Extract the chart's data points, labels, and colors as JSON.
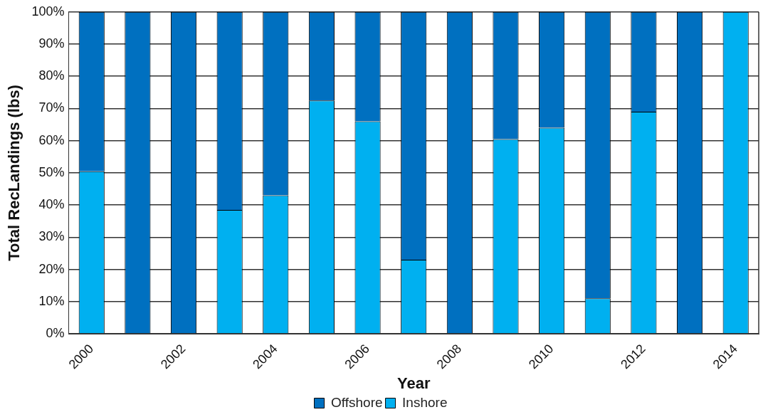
{
  "chart_data": {
    "type": "bar",
    "stacked": true,
    "xlabel": "Year",
    "ylabel": "Total RecLandings (lbs)",
    "categories": [
      "2000",
      null,
      "2002",
      null,
      "2004",
      null,
      "2006",
      null,
      "2008",
      null,
      "2010",
      null,
      "2012",
      null,
      "2014"
    ],
    "series": [
      {
        "name": "Inshore",
        "color": "#00b0f0",
        "values": [
          50.5,
          0,
          0,
          38.5,
          43,
          72.5,
          66,
          23,
          0,
          60.5,
          64,
          11,
          69,
          0,
          100
        ]
      },
      {
        "name": "Offshore",
        "color": "#0070c0",
        "values": [
          49.5,
          100,
          100,
          61.5,
          57,
          27.5,
          34,
          77,
          100,
          39.5,
          36,
          89,
          31,
          100,
          0
        ]
      }
    ],
    "ylim": [
      0,
      100
    ],
    "yticks": [
      {
        "value": 0,
        "label": "0%"
      },
      {
        "value": 10,
        "label": "10%"
      },
      {
        "value": 20,
        "label": "20%"
      },
      {
        "value": 30,
        "label": "30%"
      },
      {
        "value": 40,
        "label": "40%"
      },
      {
        "value": 50,
        "label": "50%"
      },
      {
        "value": 60,
        "label": "60%"
      },
      {
        "value": 70,
        "label": "70%"
      },
      {
        "value": 80,
        "label": "80%"
      },
      {
        "value": 90,
        "label": "90%"
      },
      {
        "value": 100,
        "label": "100%"
      }
    ],
    "grid": "y",
    "legend": "bottom"
  }
}
